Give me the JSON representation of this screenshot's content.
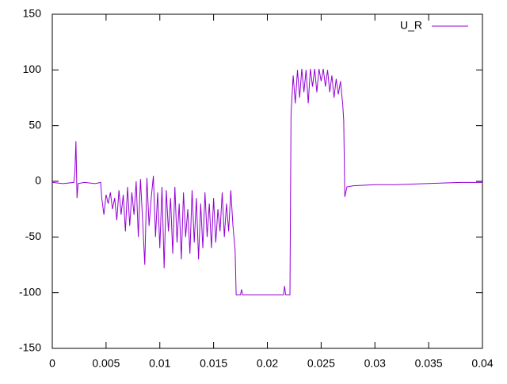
{
  "chart_data": {
    "type": "line",
    "x": [
      0,
      0.001,
      0.002,
      0.0021,
      0.0022,
      0.0023,
      0.0024,
      0.003,
      0.004,
      0.0045,
      0.0046,
      0.0048,
      0.005,
      0.0052,
      0.0054,
      0.0056,
      0.0058,
      0.006,
      0.0062,
      0.0064,
      0.0066,
      0.0068,
      0.007,
      0.0072,
      0.0074,
      0.0076,
      0.0078,
      0.008,
      0.0082,
      0.0084,
      0.0086,
      0.0088,
      0.009,
      0.0092,
      0.0094,
      0.0096,
      0.0098,
      0.01,
      0.0102,
      0.0104,
      0.0106,
      0.0108,
      0.011,
      0.0112,
      0.0114,
      0.0116,
      0.0118,
      0.012,
      0.0122,
      0.0124,
      0.0126,
      0.0128,
      0.013,
      0.0132,
      0.0134,
      0.0136,
      0.0138,
      0.014,
      0.0142,
      0.0144,
      0.0146,
      0.0148,
      0.015,
      0.0152,
      0.0154,
      0.0156,
      0.0158,
      0.016,
      0.0162,
      0.0164,
      0.0166,
      0.0168,
      0.017,
      0.0171,
      0.0175,
      0.0176,
      0.0177,
      0.0215,
      0.0216,
      0.0217,
      0.0221,
      0.0222,
      0.0224,
      0.0226,
      0.0228,
      0.023,
      0.0232,
      0.0234,
      0.0236,
      0.0238,
      0.024,
      0.0242,
      0.0244,
      0.0246,
      0.0248,
      0.025,
      0.0252,
      0.0254,
      0.0256,
      0.0258,
      0.026,
      0.0262,
      0.0264,
      0.0266,
      0.0268,
      0.027,
      0.0271,
      0.0272,
      0.0274,
      0.028,
      0.03,
      0.032,
      0.035,
      0.038,
      0.04
    ],
    "series": [
      {
        "name": "U_R",
        "color": "#9400d3",
        "values": [
          -1,
          -2,
          -1,
          8,
          36,
          -15,
          -2,
          -1,
          -2,
          -1,
          -15,
          -30,
          -12,
          -20,
          -10,
          -25,
          -15,
          -35,
          -8,
          -30,
          -12,
          -45,
          -5,
          -40,
          -10,
          -30,
          0,
          -50,
          2,
          -35,
          -75,
          3,
          -40,
          -15,
          5,
          -50,
          -10,
          -60,
          -5,
          -78,
          -8,
          -45,
          -15,
          -65,
          -5,
          -55,
          -20,
          -70,
          -10,
          -50,
          -25,
          -65,
          -8,
          -55,
          -15,
          -70,
          -20,
          -60,
          -10,
          -50,
          -20,
          -60,
          -15,
          -55,
          -25,
          -45,
          -10,
          -50,
          -20,
          -45,
          -8,
          -40,
          -62,
          -102,
          -102,
          -97,
          -102,
          -102,
          -94,
          -102,
          -102,
          60,
          95,
          70,
          100,
          75,
          101,
          80,
          100,
          70,
          101,
          85,
          101,
          80,
          101,
          90,
          101,
          85,
          100,
          80,
          95,
          75,
          92,
          78,
          90,
          70,
          55,
          -14,
          -5,
          -4,
          -3,
          -3,
          -2,
          -1,
          -1
        ]
      }
    ],
    "xlim": [
      0,
      0.04
    ],
    "xticks": [
      0,
      0.005,
      0.01,
      0.015,
      0.02,
      0.025,
      0.03,
      0.035,
      0.04
    ],
    "ylim": [
      -150,
      150
    ],
    "yticks": [
      -150,
      -100,
      -50,
      0,
      50,
      100,
      150
    ],
    "legend": "top-right"
  }
}
